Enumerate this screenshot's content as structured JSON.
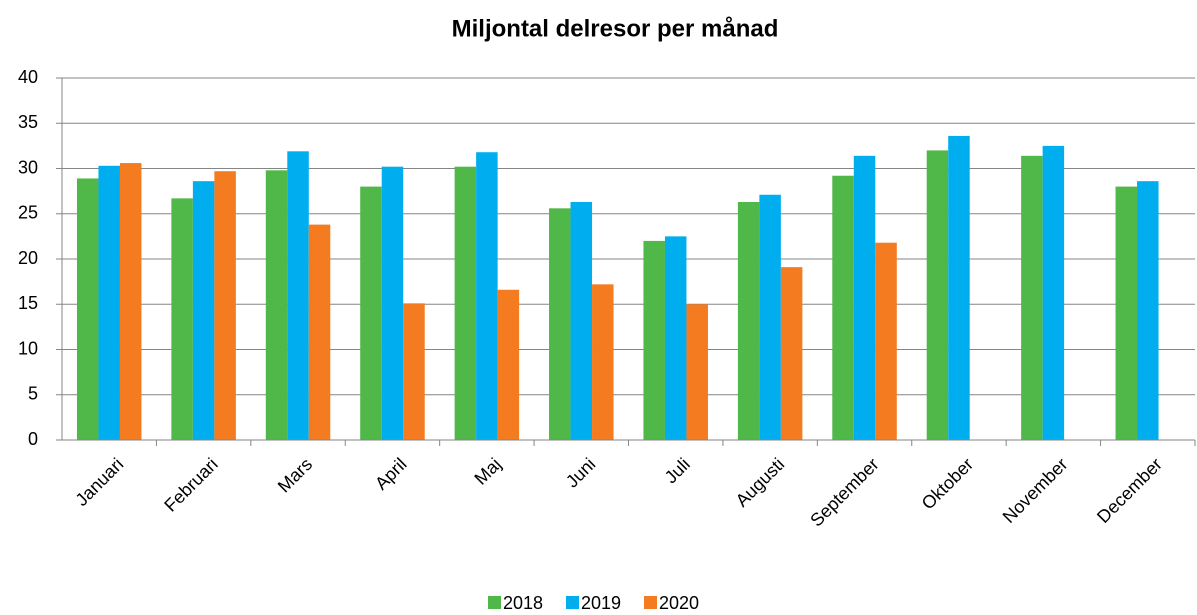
{
  "chart_data": {
    "type": "bar",
    "title": "Miljontal delresor per månad",
    "categories": [
      "Januari",
      "Februari",
      "Mars",
      "April",
      "Maj",
      "Juni",
      "Juli",
      "Augusti",
      "September",
      "Oktober",
      "November",
      "December"
    ],
    "series": [
      {
        "name": "2018",
        "color": "#50b848",
        "values": [
          28.9,
          26.7,
          29.8,
          28.0,
          30.2,
          25.6,
          22.0,
          26.3,
          29.2,
          32.0,
          31.4,
          28.0
        ]
      },
      {
        "name": "2019",
        "color": "#00aeef",
        "values": [
          30.3,
          28.6,
          31.9,
          30.2,
          31.8,
          26.3,
          22.5,
          27.1,
          31.4,
          33.6,
          32.5,
          28.6
        ]
      },
      {
        "name": "2020",
        "color": "#f47b20",
        "values": [
          30.6,
          29.7,
          23.8,
          15.1,
          16.6,
          17.2,
          15.0,
          19.1,
          21.8,
          null,
          null,
          null
        ]
      }
    ],
    "ylim": [
      0,
      40
    ],
    "yticks": [
      0,
      5,
      10,
      15,
      20,
      25,
      30,
      35,
      40
    ],
    "grid": true,
    "legend": "bottom"
  }
}
